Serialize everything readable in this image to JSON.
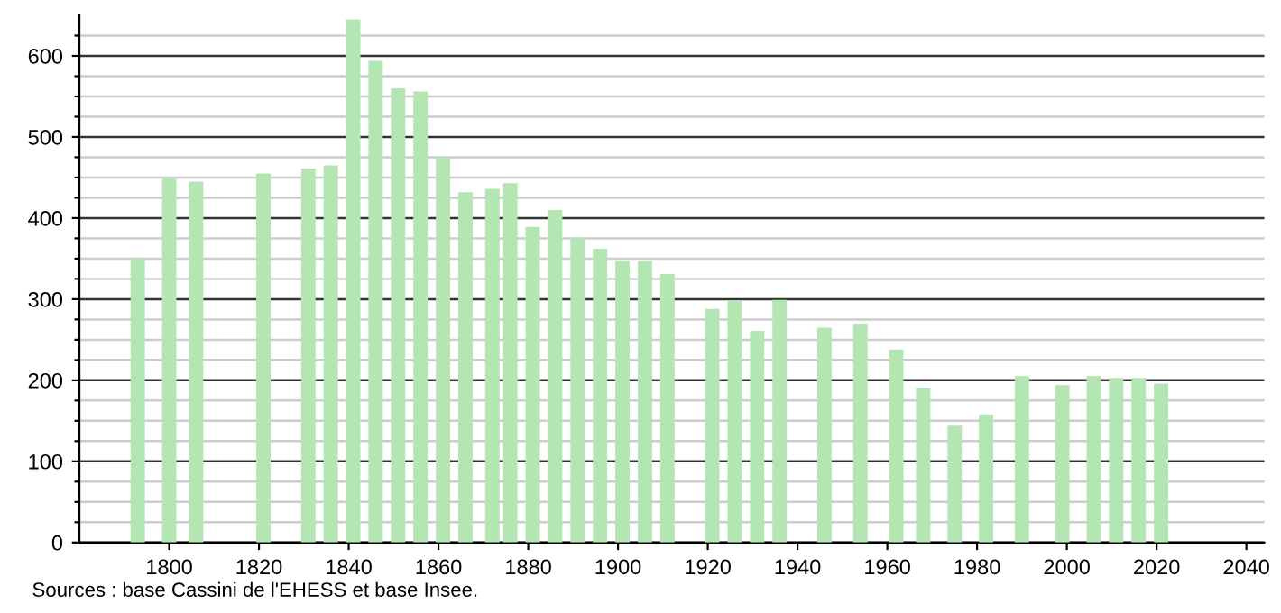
{
  "chart_data": {
    "type": "bar",
    "annotations": [
      "Sources : base Cassini de l'EHESS et base Insee."
    ],
    "x": [
      1793,
      1800,
      1806,
      1821,
      1831,
      1836,
      1841,
      1846,
      1851,
      1856,
      1861,
      1866,
      1872,
      1876,
      1881,
      1886,
      1891,
      1896,
      1901,
      1906,
      1911,
      1921,
      1926,
      1931,
      1936,
      1946,
      1954,
      1962,
      1968,
      1975,
      1982,
      1990,
      1999,
      2006,
      2011,
      2016,
      2021
    ],
    "values": [
      350,
      450,
      445,
      455,
      461,
      465,
      645,
      594,
      560,
      556,
      475,
      432,
      436,
      443,
      389,
      410,
      375,
      362,
      347,
      347,
      331,
      288,
      298,
      261,
      299,
      265,
      270,
      238,
      191,
      144,
      158,
      205,
      194,
      205,
      203,
      203,
      196
    ],
    "color": "#b3e6b3",
    "xlim": [
      1780,
      2044
    ],
    "xticks": [
      1800,
      1820,
      1840,
      1860,
      1880,
      1900,
      1920,
      1940,
      1960,
      1980,
      2000,
      2020,
      2040
    ],
    "ylim": [
      0,
      650
    ],
    "yticks": [
      0,
      {
        "value": 25,
        "label": null
      },
      {
        "value": 50,
        "label": null
      },
      {
        "value": 75,
        "label": null
      },
      100,
      {
        "value": 125,
        "label": null
      },
      {
        "value": 150,
        "label": null
      },
      {
        "value": 175,
        "label": null
      },
      200,
      {
        "value": 225,
        "label": null
      },
      {
        "value": 250,
        "label": null
      },
      {
        "value": 275,
        "label": null
      },
      300,
      {
        "value": 325,
        "label": null
      },
      {
        "value": 350,
        "label": null
      },
      {
        "value": 375,
        "label": null
      },
      400,
      {
        "value": 425,
        "label": null
      },
      {
        "value": 450,
        "label": null
      },
      {
        "value": 475,
        "label": null
      },
      500,
      {
        "value": 525,
        "label": null
      },
      {
        "value": 550,
        "label": null
      },
      {
        "value": 575,
        "label": null
      },
      600,
      {
        "value": 625,
        "label": null
      }
    ],
    "grid": "y"
  }
}
